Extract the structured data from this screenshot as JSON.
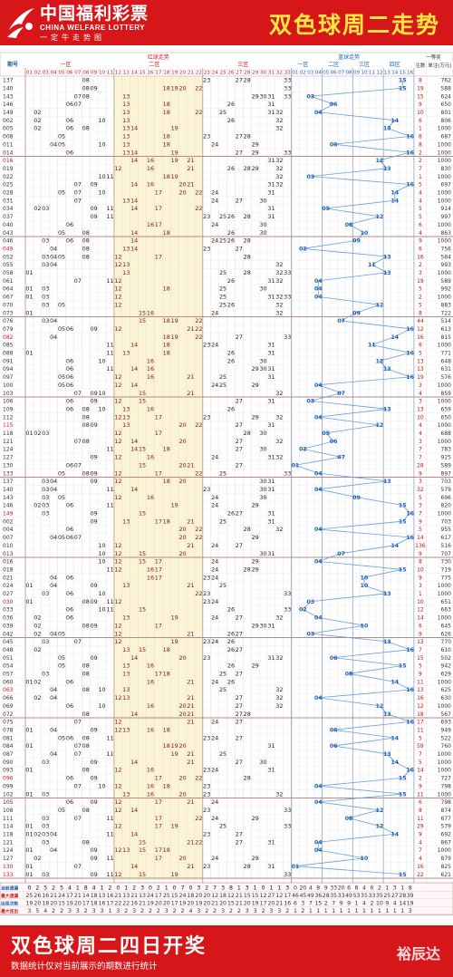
{
  "header": {
    "logo_cn": "中国福利彩票",
    "logo_en": "CHINA WELFARE LOTTERY",
    "logo_slogan": "一定牛走势图",
    "title": "双色球周二走势"
  },
  "footer": {
    "title": "双色球周二四日开奖",
    "note": "数据统计仅对当前展示的期数进行统计",
    "brand": "裕辰达"
  },
  "colors": {
    "brand_red": "#d7161a",
    "red_ball": "#d7161a",
    "blue_ball": "#1d5fae",
    "zone2_band": "#fbf5d6",
    "grid": "#e3cfcf",
    "blue_line": "#6b9ed6"
  },
  "chart_data": {
    "type": "table",
    "title": "双色球周二走势",
    "header_labels": {
      "issue": "期号",
      "red_trend": "红球走势",
      "blue_trend": "蓝球走势",
      "red_zone1": "一区",
      "red_zone2": "二区",
      "red_zone3": "三区",
      "blue_zone1": "一区",
      "blue_zone2": "二区",
      "blue_zone3": "三区",
      "blue_zone4": "四区",
      "first_prize": "一等奖",
      "winners": "注数",
      "prize": "单注(万元)"
    },
    "issues": [
      "137",
      "140",
      "143",
      "146",
      "149",
      "002",
      "005",
      "008",
      "011",
      "014",
      "016",
      "019",
      "022",
      "025",
      "028",
      "031",
      "034",
      "037",
      "040",
      "043",
      "046",
      "049",
      "052",
      "055",
      "058",
      "061",
      "064",
      "067",
      "070",
      "073",
      "076",
      "079",
      "082",
      "085",
      "088",
      "091",
      "094",
      "097",
      "100",
      "103",
      "106",
      "109",
      "112",
      "115",
      "118",
      "121",
      "124",
      "127",
      "130",
      "133",
      "137",
      "140",
      "143",
      "146",
      "149",
      "002",
      "004",
      "007",
      "010",
      "013",
      "016",
      "018",
      "021",
      "024",
      "027",
      "030",
      "033",
      "036",
      "039",
      "042",
      "045",
      "048",
      "051",
      "054",
      "057",
      "060",
      "063",
      "066",
      "069",
      "072",
      "075",
      "078",
      "081",
      "084",
      "087",
      "090",
      "093",
      "096",
      "099",
      "102",
      "105",
      "108",
      "111",
      "114",
      "118",
      "121",
      "124",
      "127",
      "130",
      "133"
    ],
    "red_balls": [
      [
        8,
        23,
        27,
        28,
        33
      ],
      [
        8,
        9,
        18,
        19,
        20,
        22,
        33
      ],
      [
        7,
        8,
        13,
        29,
        30,
        31,
        33
      ],
      [
        6,
        7,
        13,
        18,
        26,
        31
      ],
      [
        2,
        13,
        18,
        22,
        25,
        31,
        32
      ],
      [
        2,
        6,
        10,
        13,
        26,
        32
      ],
      [
        2,
        6,
        8,
        13,
        14,
        19,
        32
      ],
      [
        5,
        13,
        18,
        23,
        27,
        28
      ],
      [
        4,
        5,
        10,
        13,
        18,
        24,
        29
      ],
      [
        6,
        13,
        14,
        19,
        27,
        29,
        33
      ],
      [
        14,
        16,
        19,
        21,
        31,
        32
      ],
      [
        12,
        16,
        21,
        26,
        28,
        29,
        32
      ],
      [
        10,
        11,
        18,
        19,
        32
      ],
      [
        7,
        9,
        14,
        16,
        20,
        21,
        31,
        32
      ],
      [
        5,
        7,
        10,
        17,
        20,
        22,
        24,
        31
      ],
      [
        7,
        13,
        14,
        24,
        27,
        30
      ],
      [
        2,
        3,
        9,
        11,
        14,
        17,
        22,
        31
      ],
      [
        9,
        11,
        23,
        25,
        26,
        28,
        31
      ],
      [
        6,
        16,
        17,
        24,
        30
      ],
      [
        5,
        8,
        14,
        18,
        26,
        30
      ],
      [
        3,
        6,
        8,
        14,
        24,
        25,
        26,
        28
      ],
      [
        4,
        8,
        13,
        14,
        23,
        27
      ],
      [
        3,
        4,
        5,
        8,
        12,
        17,
        28
      ],
      [
        3,
        4,
        12,
        13,
        32
      ],
      [
        1,
        13,
        25,
        28,
        32,
        33
      ],
      [
        7,
        11,
        12,
        26,
        31,
        32
      ],
      [
        1,
        3,
        12,
        18,
        25,
        30
      ],
      [
        1,
        3,
        12,
        25,
        31,
        32,
        33
      ],
      [
        3,
        5,
        12,
        25,
        26,
        32
      ],
      [
        1,
        15,
        16,
        24,
        32
      ],
      [
        3,
        4,
        15,
        18,
        19,
        22
      ],
      [
        5,
        6,
        9,
        12,
        21,
        22
      ],
      [
        4,
        18,
        19,
        22,
        27,
        33
      ],
      [
        11,
        14,
        18,
        23,
        24,
        31
      ],
      [
        1,
        11,
        13,
        18,
        26,
        31
      ],
      [
        6,
        10,
        16,
        26,
        30
      ],
      [
        6,
        11,
        14,
        16,
        29,
        30,
        31
      ],
      [
        5,
        6,
        12,
        16,
        21,
        25,
        31
      ],
      [
        5,
        6,
        12,
        14,
        24,
        25,
        29
      ],
      [
        7,
        9,
        10,
        15,
        21,
        32
      ],
      [
        6,
        9,
        12,
        15,
        27,
        31
      ],
      [
        6,
        8,
        10,
        13,
        16,
        26
      ],
      [
        8,
        12,
        13,
        17,
        23,
        29,
        32
      ],
      [
        8,
        9,
        13,
        20,
        22,
        27,
        31
      ],
      [
        1,
        2,
        3,
        12,
        17,
        28,
        30
      ],
      [
        7,
        8,
        12,
        14,
        20,
        27,
        32
      ],
      [
        11,
        14,
        15,
        18,
        27,
        30
      ],
      [
        9,
        12,
        16,
        24,
        31,
        32
      ],
      [
        6,
        7,
        15,
        20,
        21,
        27
      ],
      [
        5,
        8,
        9,
        12,
        17,
        22,
        25,
        33
      ],
      [
        3,
        4,
        9,
        12,
        18,
        20,
        30,
        31
      ],
      [
        3,
        4,
        11,
        14,
        23,
        30,
        31
      ],
      [
        3,
        5,
        12,
        16,
        24,
        30
      ],
      [
        2,
        3,
        6,
        11,
        19,
        24,
        29
      ],
      [
        3,
        9,
        15,
        26,
        27,
        31
      ],
      [
        9,
        13,
        17,
        18,
        21,
        25,
        31
      ],
      [
        6,
        20,
        22,
        28,
        32
      ],
      [
        4,
        5,
        6,
        7,
        20,
        22,
        29
      ],
      [
        10,
        12,
        21,
        24,
        27
      ],
      [
        10,
        12,
        15,
        20,
        30,
        31
      ],
      [
        10,
        12,
        15,
        17,
        24,
        29
      ],
      [
        11,
        12,
        16,
        17,
        24,
        28,
        29
      ],
      [
        4,
        6,
        16,
        17,
        23,
        24
      ],
      [
        1,
        4,
        9,
        13,
        21,
        25
      ],
      [
        3,
        6,
        10,
        22,
        23,
        33
      ],
      [
        1,
        8,
        9,
        11,
        12,
        23,
        24
      ],
      [
        6,
        10,
        11,
        15,
        26,
        33
      ],
      [
        2,
        6,
        13,
        19,
        24,
        27,
        32
      ],
      [
        2,
        8,
        9,
        12,
        17,
        29,
        30,
        31
      ],
      [
        2,
        4,
        5,
        12,
        21,
        26,
        27
      ],
      [
        3,
        7,
        12,
        19,
        23,
        24,
        26
      ],
      [
        2,
        13,
        15,
        18,
        26,
        27
      ],
      [
        5,
        9,
        14,
        20,
        23,
        31,
        32
      ],
      [
        5,
        8,
        13,
        16,
        26,
        29
      ],
      [
        3,
        8,
        13,
        17,
        18,
        25,
        27
      ],
      [
        1,
        2,
        6,
        16,
        21,
        24,
        26
      ],
      [
        4,
        8,
        10,
        13,
        25,
        32
      ],
      [
        2,
        4,
        12,
        13,
        21,
        27,
        32
      ],
      [
        6,
        10,
        16,
        20,
        21,
        27,
        32
      ],
      [
        8,
        14,
        20,
        21,
        27,
        28
      ],
      [
        7,
        12,
        21,
        24,
        27
      ],
      [
        1,
        4,
        9,
        12,
        13,
        16,
        18
      ],
      [
        5,
        6,
        8,
        11,
        23,
        24,
        27
      ],
      [
        1,
        7,
        8,
        18,
        19,
        20,
        31
      ],
      [
        4,
        7,
        11,
        19,
        21,
        25
      ],
      [
        3,
        9,
        14,
        21,
        27,
        30
      ],
      [
        1,
        8,
        12,
        16,
        23,
        24,
        31
      ],
      [
        6,
        9,
        17,
        20,
        22,
        28
      ],
      [
        7,
        10,
        12,
        16,
        18,
        23
      ],
      [
        1,
        3,
        13,
        16,
        20,
        23,
        32
      ],
      [
        6,
        9,
        12,
        17,
        21,
        24
      ],
      [
        5,
        8,
        12,
        14,
        23,
        33
      ],
      [
        3,
        7,
        11,
        17,
        22,
        24,
        29
      ],
      [
        1,
        3,
        12,
        17,
        19,
        25,
        33
      ],
      [
        1,
        2,
        3,
        4,
        11,
        14,
        23,
        27
      ],
      [
        3,
        8,
        15,
        21,
        22,
        27,
        31
      ],
      [
        1,
        4,
        9,
        12,
        13,
        15,
        17,
        18
      ],
      [
        2,
        9,
        11,
        17,
        20,
        24,
        29
      ],
      [
        1,
        7,
        14,
        21,
        23,
        28,
        31
      ],
      [
        1,
        3,
        9,
        11,
        12,
        15,
        19,
        33
      ]
    ],
    "blue_balls": [
      15,
      15,
      3,
      6,
      4,
      14,
      13,
      16,
      6,
      16,
      12,
      13,
      3,
      16,
      14,
      14,
      5,
      12,
      8,
      10,
      9,
      2,
      13,
      11,
      13,
      4,
      4,
      4,
      12,
      9,
      7,
      16,
      14,
      11,
      16,
      12,
      13,
      16,
      4,
      7,
      3,
      13,
      4,
      12,
      5,
      6,
      2,
      7,
      1,
      4,
      13,
      4,
      9,
      15,
      16,
      15,
      4,
      16,
      14,
      7,
      4,
      15,
      10,
      10,
      13,
      3,
      2,
      4,
      10,
      3,
      13,
      16,
      6,
      15,
      8,
      14,
      16,
      4,
      12,
      13,
      16,
      6,
      14,
      6,
      13,
      14,
      16,
      15,
      4,
      15,
      4,
      12,
      8,
      12,
      14,
      4,
      4,
      10,
      1,
      15
    ],
    "first_prize_winners": [
      8,
      19,
      15,
      9,
      10,
      6,
      1,
      8,
      8,
      2,
      2,
      7,
      1,
      5,
      4,
      4,
      5,
      5,
      6,
      4,
      9,
      6,
      16,
      2,
      3,
      19,
      5,
      2,
      5,
      8,
      44,
      12,
      16,
      6,
      5,
      13,
      13,
      19,
      3,
      4,
      3,
      13,
      10,
      4,
      4,
      3,
      7,
      7,
      28,
      9,
      3,
      32,
      5,
      3,
      7,
      9,
      5,
      14,
      136,
      9,
      8,
      10,
      9,
      3,
      1,
      10,
      12,
      14,
      6,
      9,
      13,
      7,
      15,
      5,
      9,
      11,
      13,
      16,
      12,
      18,
      17,
      11,
      5,
      59,
      7,
      5,
      14,
      2,
      9,
      11,
      6,
      8,
      11,
      29,
      9,
      4,
      7,
      4,
      16,
      22
    ],
    "first_prize_amounts": [
      762,
      588,
      624,
      650,
      801,
      806,
      1000,
      687,
      1000,
      1000,
      1000,
      830,
      1000,
      697,
      1000,
      1000,
      914,
      997,
      1000,
      863,
      1000,
      756,
      584,
      993,
      1000,
      589,
      992,
      1000,
      883,
      722,
      514,
      613,
      815,
      1000,
      771,
      648,
      631,
      576,
      1000,
      859,
      1000,
      659,
      650,
      1000,
      688,
      1000,
      783,
      925,
      589,
      897,
      703,
      579,
      696,
      820,
      1000,
      703,
      955,
      617,
      516,
      707,
      730,
      719,
      775,
      1000,
      1000,
      651,
      663,
      1000,
      645,
      626,
      770,
      610,
      502,
      942,
      629,
      1000,
      625,
      630,
      1000,
      567,
      693,
      949,
      522,
      760,
      1000,
      1000,
      1000,
      727,
      798,
      1000,
      798,
      874,
      677,
      579,
      692,
      867,
      1000,
      879,
      825,
      621
    ],
    "stats": {
      "labels": [
        "当前遗漏",
        "最大遗漏",
        "出现次数",
        "最大连出"
      ],
      "red": [
        [
          0,
          2,
          5,
          2,
          5,
          4,
          1,
          8,
          4,
          1,
          2,
          0,
          1,
          2,
          3,
          0,
          2,
          1,
          0,
          7,
          0,
          3,
          2,
          7,
          3,
          8,
          1,
          3,
          1,
          0,
          1,
          1,
          3
        ],
        [
          25,
          26,
          16,
          21,
          24,
          17,
          21,
          14,
          18,
          13,
          16,
          21,
          13,
          21,
          13,
          24,
          17,
          25,
          15,
          24,
          18,
          20,
          20,
          12,
          18,
          12,
          21,
          15,
          15,
          12,
          27,
          12,
          17
        ],
        [
          19,
          20,
          18,
          20,
          15,
          19,
          20,
          17,
          18,
          16,
          17,
          22,
          22,
          16,
          21,
          19,
          20,
          20,
          17,
          19,
          20,
          19,
          20,
          21,
          20,
          15,
          21,
          20,
          19,
          17,
          20,
          21,
          16
        ],
        [
          3,
          5,
          4,
          2,
          2,
          3,
          3,
          2,
          3,
          3,
          1,
          3,
          2,
          3,
          2,
          2,
          2,
          3,
          2,
          2,
          4,
          3,
          2,
          2,
          3,
          2,
          2,
          3,
          3,
          2,
          3,
          3,
          2
        ]
      ],
      "blue": [
        [
          0,
          20,
          4,
          8,
          9,
          33,
          20,
          6,
          8,
          4,
          6,
          2,
          1,
          3,
          1,
          8
        ],
        [
          46,
          45,
          49,
          36,
          28,
          35,
          33,
          49,
          53,
          35,
          33,
          35,
          25,
          27,
          28,
          39
        ],
        [
          6,
          3,
          7,
          15,
          2,
          7,
          9,
          9,
          1,
          4,
          2,
          10,
          9,
          4,
          14,
          19
        ],
        [
          1,
          2,
          1,
          1,
          1,
          1,
          1,
          1,
          1,
          1,
          1,
          1,
          1,
          1,
          1,
          3
        ]
      ]
    },
    "red_range": [
      1,
      33
    ],
    "blue_range": [
      1,
      16
    ],
    "grid": true
  }
}
